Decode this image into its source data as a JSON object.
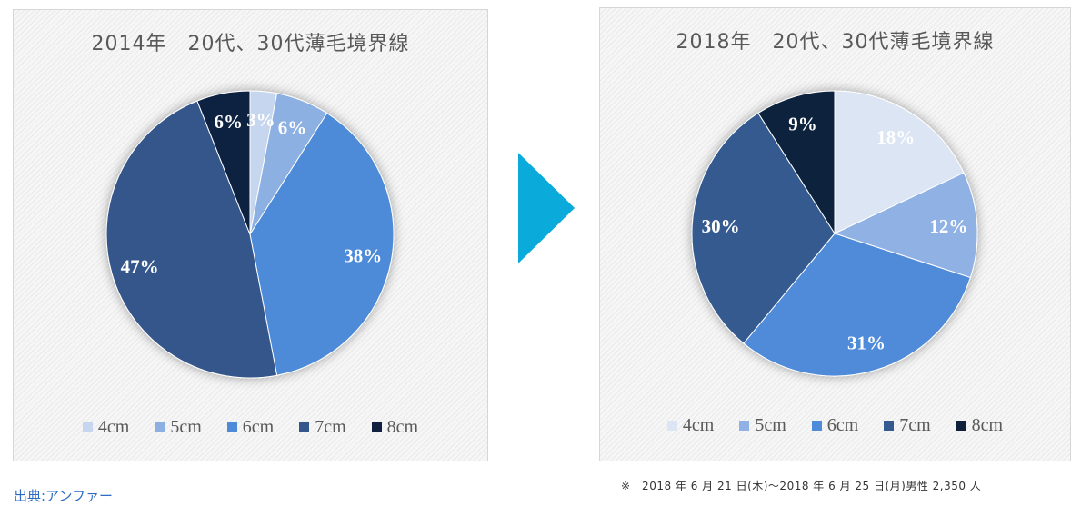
{
  "arrow": {
    "icon": "right-triangle-arrow-icon",
    "color": "#0aaadb"
  },
  "footer": {
    "source": "出典:アンファー",
    "note": "※　2018 年 6 月 21 日(木)～2018 年 6 月 25 日(月)男性 2,350 人"
  },
  "chart_data": [
    {
      "type": "pie",
      "title": "2014年　20代、30代薄毛境界線",
      "categories": [
        "4cm",
        "5cm",
        "6cm",
        "7cm",
        "8cm"
      ],
      "values": [
        3,
        6,
        38,
        47,
        6
      ],
      "data_labels": [
        "3%",
        "6%",
        "38%",
        "47%",
        "6%"
      ],
      "colors": [
        "#c6d6ee",
        "#8db0e2",
        "#4e8ad7",
        "#34568b",
        "#0f213f"
      ],
      "legend": "bottom"
    },
    {
      "type": "pie",
      "title": "2018年　20代、30代薄毛境界線",
      "categories": [
        "4cm",
        "5cm",
        "6cm",
        "7cm",
        "8cm"
      ],
      "values": [
        18,
        12,
        31,
        30,
        9
      ],
      "data_labels": [
        "18%",
        "12%",
        "31%",
        "30%",
        "9%"
      ],
      "colors": [
        "#dbe5f4",
        "#8fb1e3",
        "#4f8bd8",
        "#345a8f",
        "#10203c"
      ],
      "legend": "bottom"
    }
  ]
}
